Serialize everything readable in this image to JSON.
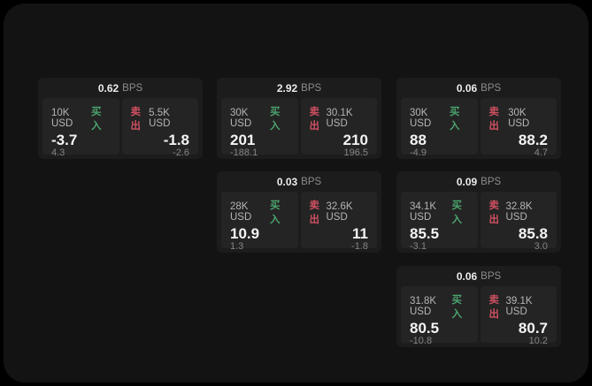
{
  "labels": {
    "bps": "BPS",
    "buy": "买入",
    "sell": "卖出"
  },
  "colors": {
    "buy_green": "#4ba46e",
    "sell_red": "#ce5060",
    "window_bg": "#131313",
    "card_bg": "#1c1c1c",
    "tile_bg": "#242424"
  },
  "cards": [
    {
      "spread": "0.62",
      "buy": {
        "amount": "10K USD",
        "price": "-3.7",
        "delta": "4.3"
      },
      "sell": {
        "amount": "5.5K USD",
        "price": "-1.8",
        "delta": "-2.6"
      }
    },
    {
      "spread": "2.92",
      "buy": {
        "amount": "30K USD",
        "price": "201",
        "delta": "-188.1"
      },
      "sell": {
        "amount": "30.1K USD",
        "price": "210",
        "delta": "196.5"
      }
    },
    {
      "spread": "0.06",
      "buy": {
        "amount": "30K USD",
        "price": "88",
        "delta": "-4.9"
      },
      "sell": {
        "amount": "30K USD",
        "price": "88.2",
        "delta": "4.7"
      }
    },
    {
      "spread": "0.03",
      "buy": {
        "amount": "28K USD",
        "price": "10.9",
        "delta": "1.3"
      },
      "sell": {
        "amount": "32.6K USD",
        "price": "11",
        "delta": "-1.8"
      }
    },
    {
      "spread": "0.09",
      "buy": {
        "amount": "34.1K USD",
        "price": "85.5",
        "delta": "-3.1"
      },
      "sell": {
        "amount": "32.8K USD",
        "price": "85.8",
        "delta": "3.0"
      }
    },
    {
      "spread": "0.06",
      "buy": {
        "amount": "31.8K USD",
        "price": "80.5",
        "delta": "-10.8"
      },
      "sell": {
        "amount": "39.1K USD",
        "price": "80.7",
        "delta": "10.2"
      }
    }
  ]
}
